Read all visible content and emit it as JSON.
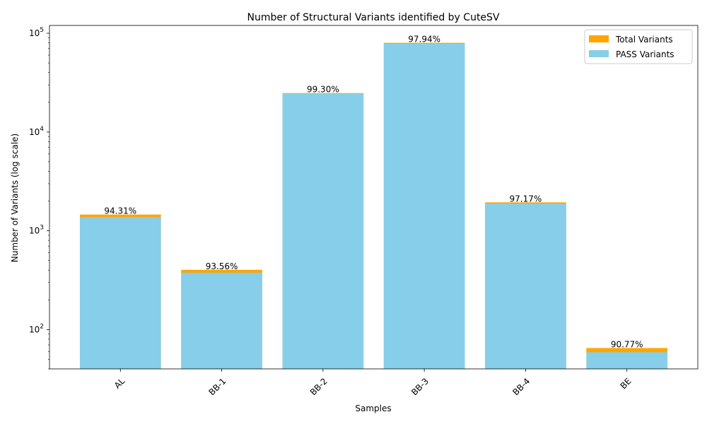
{
  "chart_data": {
    "type": "bar",
    "title": "Number of Structural Variants identified by CuteSV",
    "xlabel": "Samples",
    "ylabel": "Number of Variants (log scale)",
    "yscale": "log",
    "ylim": [
      40,
      120000
    ],
    "y_ticks": [
      {
        "value": 100,
        "base": "10",
        "exp": "2"
      },
      {
        "value": 1000,
        "base": "10",
        "exp": "3"
      },
      {
        "value": 10000,
        "base": "10",
        "exp": "4"
      },
      {
        "value": 100000,
        "base": "10",
        "exp": "5"
      }
    ],
    "categories": [
      "AL",
      "BB-1",
      "BB-2",
      "BB-3",
      "BB-4",
      "BE"
    ],
    "series": [
      {
        "name": "Total Variants",
        "color": "#ffa500",
        "values": [
          1460,
          403,
          24800,
          80000,
          1940,
          65
        ]
      },
      {
        "name": "PASS Variants",
        "color": "#87ceeb",
        "values": [
          1377,
          377,
          24626,
          78352,
          1885,
          59
        ]
      }
    ],
    "pass_percent_labels": [
      "94.31%",
      "93.56%",
      "99.30%",
      "97.94%",
      "97.17%",
      "90.77%"
    ],
    "legend": {
      "position": "top-right"
    },
    "grid": false
  }
}
